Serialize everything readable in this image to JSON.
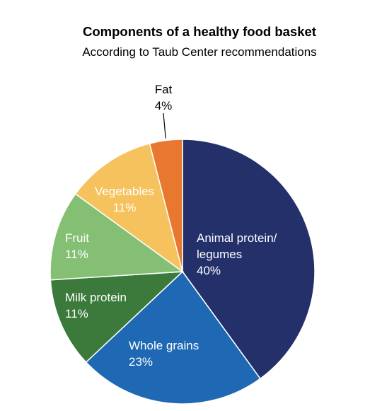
{
  "chart_data": {
    "type": "pie",
    "title": "Components of a healthy food basket",
    "subtitle": "According to Taub Center recommendations",
    "slices": [
      {
        "label": "Animal protein/\nlegumes",
        "value": 40,
        "display": "40%",
        "color": "#23306a",
        "label_color": "#ffffff"
      },
      {
        "label": "Whole grains",
        "value": 23,
        "display": "23%",
        "color": "#1f68b4",
        "label_color": "#ffffff"
      },
      {
        "label": "Milk protein",
        "value": 11,
        "display": "11%",
        "color": "#3c7a3c",
        "label_color": "#ffffff"
      },
      {
        "label": "Fruit",
        "value": 11,
        "display": "11%",
        "color": "#84bf74",
        "label_color": "#ffffff"
      },
      {
        "label": "Vegetables",
        "value": 11,
        "display": "11%",
        "color": "#f5c25e",
        "label_color": "#ffffff"
      },
      {
        "label": "Fat",
        "value": 4,
        "display": "4%",
        "color": "#e8782f",
        "label_color": "#000000",
        "label_outside": true
      }
    ]
  }
}
